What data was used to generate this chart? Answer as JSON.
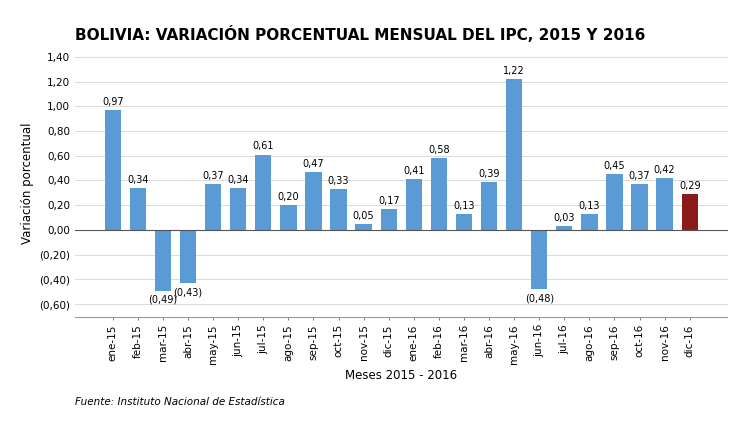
{
  "title": "BOLIVIA: VARIACIÓN PORCENTUAL MENSUAL DEL IPC, 2015 Y 2016",
  "xlabel": "Meses 2015 - 2016",
  "ylabel": "Variación porcentual",
  "footnote": "Fuente: Instituto Nacional de Estadística",
  "categories": [
    "ene-15",
    "feb-15",
    "mar-15",
    "abr-15",
    "may-15",
    "jun-15",
    "jul-15",
    "ago-15",
    "sep-15",
    "oct-15",
    "nov-15",
    "dic-15",
    "ene-16",
    "feb-16",
    "mar-16",
    "abr-16",
    "may-16",
    "jun-16",
    "jul-16",
    "ago-16",
    "sep-16",
    "oct-16",
    "nov-16",
    "dic-16"
  ],
  "values": [
    0.97,
    0.34,
    -0.49,
    -0.43,
    0.37,
    0.34,
    0.61,
    0.2,
    0.47,
    0.33,
    0.05,
    0.17,
    0.41,
    0.58,
    0.13,
    0.39,
    1.22,
    -0.48,
    0.03,
    0.13,
    0.45,
    0.37,
    0.42,
    0.29
  ],
  "bar_colors": [
    "#5B9BD5",
    "#5B9BD5",
    "#5B9BD5",
    "#5B9BD5",
    "#5B9BD5",
    "#5B9BD5",
    "#5B9BD5",
    "#5B9BD5",
    "#5B9BD5",
    "#5B9BD5",
    "#5B9BD5",
    "#5B9BD5",
    "#5B9BD5",
    "#5B9BD5",
    "#5B9BD5",
    "#5B9BD5",
    "#5B9BD5",
    "#5B9BD5",
    "#5B9BD5",
    "#5B9BD5",
    "#5B9BD5",
    "#5B9BD5",
    "#5B9BD5",
    "#8B1A1A"
  ],
  "ylim": [
    -0.7,
    1.45
  ],
  "yticks": [
    -0.6,
    -0.4,
    -0.2,
    0.0,
    0.2,
    0.4,
    0.6,
    0.8,
    1.0,
    1.2,
    1.4
  ],
  "background_color": "#FFFFFF",
  "label_fontsize": 7.0,
  "title_fontsize": 11,
  "axis_label_fontsize": 8.5,
  "tick_fontsize": 7.5,
  "footnote_fontsize": 7.5
}
